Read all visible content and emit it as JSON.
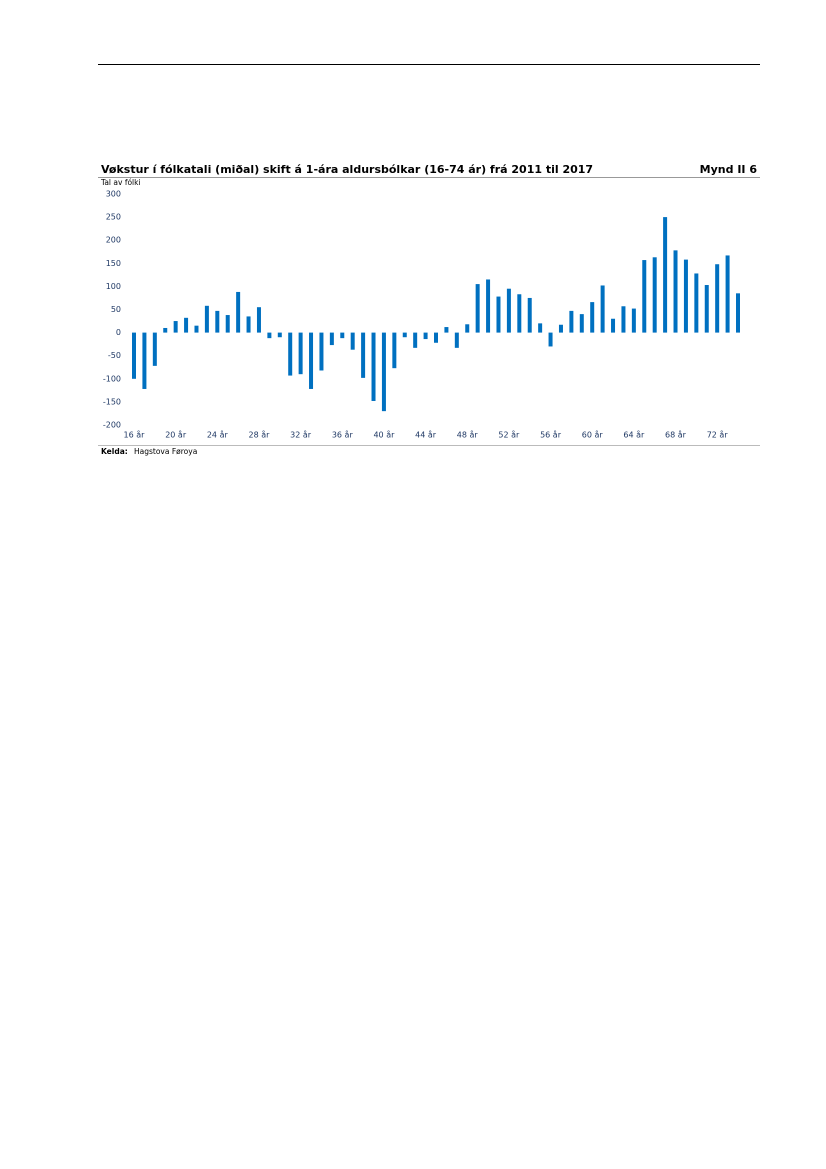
{
  "chart_data": {
    "type": "bar",
    "title": "Vøkstur í fólkatali (miðal) skift á 1-ára aldursbólkar (16-74 ár) frá 2011 til 2017",
    "figure_label": "Mynd II 6",
    "y_label": "Tal av fólki",
    "source_label": "Kelda:",
    "source": "Hagstova Føroya",
    "color": "#0070c0",
    "categories": [
      "16 år",
      null,
      null,
      null,
      "20 år",
      null,
      null,
      null,
      "24 år",
      null,
      null,
      null,
      "28 år",
      null,
      null,
      null,
      "32 år",
      null,
      null,
      null,
      "36 år",
      null,
      null,
      null,
      "40 år",
      null,
      null,
      null,
      "44 år",
      null,
      null,
      null,
      "48 år",
      null,
      null,
      null,
      "52 år",
      null,
      null,
      null,
      "56 år",
      null,
      null,
      null,
      "60 år",
      null,
      null,
      null,
      "64 år",
      null,
      null,
      null,
      "68 år",
      null,
      null,
      null,
      "72 år",
      null,
      null
    ],
    "values": [
      -100,
      -122,
      -72,
      10,
      25,
      32,
      15,
      58,
      47,
      38,
      88,
      35,
      55,
      -12,
      -10,
      -93,
      -90,
      -122,
      -82,
      -27,
      -12,
      -37,
      -98,
      -148,
      -170,
      -77,
      -10,
      -33,
      -14,
      -22,
      12,
      -33,
      18,
      105,
      115,
      78,
      95,
      83,
      75,
      20,
      -30,
      17,
      47,
      40,
      66,
      102,
      30,
      57,
      52,
      157,
      163,
      250,
      178,
      158,
      128,
      103,
      148,
      167,
      85
    ],
    "ylim": [
      -200,
      300
    ],
    "yticks": [
      -200,
      -150,
      -100,
      -50,
      0,
      50,
      100,
      150,
      200,
      250,
      300
    ],
    "grid": false
  }
}
